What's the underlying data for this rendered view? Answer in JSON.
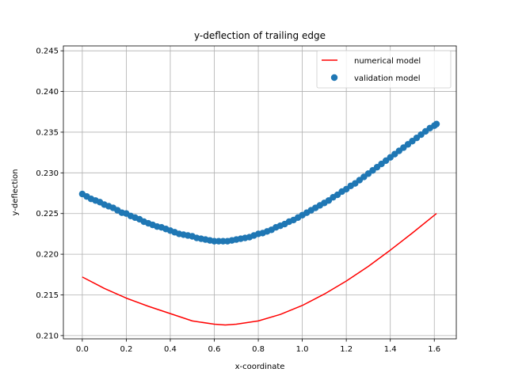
{
  "chart_data": {
    "type": "line",
    "title": "y-deflection of trailing edge",
    "xlabel": "x-coordinate",
    "ylabel": "y-deflection",
    "xlim": [
      -0.086,
      1.7
    ],
    "ylim": [
      0.2096,
      0.2456
    ],
    "xticks": [
      0.0,
      0.2,
      0.4,
      0.6,
      0.8,
      1.0,
      1.2,
      1.4,
      1.6
    ],
    "xtick_labels": [
      "0.0",
      "0.2",
      "0.4",
      "0.6",
      "0.8",
      "1.0",
      "1.2",
      "1.4",
      "1.6"
    ],
    "yticks": [
      0.21,
      0.215,
      0.22,
      0.225,
      0.23,
      0.235,
      0.24,
      0.245
    ],
    "ytick_labels": [
      "0.210",
      "0.215",
      "0.220",
      "0.225",
      "0.230",
      "0.235",
      "0.240",
      "0.245"
    ],
    "grid": true,
    "legend_position": "top-right",
    "series": [
      {
        "name": "numerical model",
        "kind": "line",
        "color": "#ff0000",
        "x": [
          0.0,
          0.1,
          0.2,
          0.3,
          0.4,
          0.5,
          0.6,
          0.65,
          0.7,
          0.8,
          0.9,
          1.0,
          1.1,
          1.2,
          1.3,
          1.4,
          1.5,
          1.61
        ],
        "y": [
          0.2172,
          0.2158,
          0.2146,
          0.2136,
          0.2127,
          0.2118,
          0.2114,
          0.2113,
          0.2114,
          0.2118,
          0.2126,
          0.2137,
          0.2151,
          0.2167,
          0.2185,
          0.2205,
          0.2226,
          0.225
        ]
      },
      {
        "name": "validation model",
        "kind": "scatter",
        "color": "#1f77b4",
        "x": [
          0.0,
          0.02,
          0.04,
          0.06,
          0.08,
          0.1,
          0.12,
          0.14,
          0.16,
          0.18,
          0.2,
          0.22,
          0.24,
          0.26,
          0.28,
          0.3,
          0.32,
          0.34,
          0.36,
          0.38,
          0.4,
          0.42,
          0.44,
          0.46,
          0.48,
          0.5,
          0.52,
          0.54,
          0.56,
          0.58,
          0.6,
          0.62,
          0.64,
          0.66,
          0.68,
          0.7,
          0.72,
          0.74,
          0.76,
          0.78,
          0.8,
          0.82,
          0.84,
          0.86,
          0.88,
          0.9,
          0.92,
          0.94,
          0.96,
          0.98,
          1.0,
          1.02,
          1.04,
          1.06,
          1.08,
          1.1,
          1.12,
          1.14,
          1.16,
          1.18,
          1.2,
          1.22,
          1.24,
          1.26,
          1.28,
          1.3,
          1.32,
          1.34,
          1.36,
          1.38,
          1.4,
          1.42,
          1.44,
          1.46,
          1.48,
          1.5,
          1.52,
          1.54,
          1.56,
          1.58,
          1.6,
          1.61
        ],
        "y": [
          0.2274,
          0.2271,
          0.2268,
          0.2266,
          0.2264,
          0.2261,
          0.2259,
          0.2257,
          0.2254,
          0.2251,
          0.225,
          0.2247,
          0.2245,
          0.2243,
          0.224,
          0.2238,
          0.2236,
          0.2234,
          0.2233,
          0.2231,
          0.2229,
          0.2227,
          0.2225,
          0.2224,
          0.2223,
          0.2222,
          0.222,
          0.2219,
          0.2218,
          0.2217,
          0.2216,
          0.2216,
          0.2216,
          0.2216,
          0.2217,
          0.2218,
          0.2219,
          0.222,
          0.2221,
          0.2223,
          0.2225,
          0.2226,
          0.2228,
          0.223,
          0.2233,
          0.2235,
          0.2237,
          0.224,
          0.2242,
          0.2245,
          0.2248,
          0.2251,
          0.2254,
          0.2257,
          0.226,
          0.2263,
          0.2266,
          0.227,
          0.2273,
          0.2277,
          0.228,
          0.2284,
          0.2287,
          0.2291,
          0.2295,
          0.2299,
          0.2303,
          0.2307,
          0.2311,
          0.2315,
          0.2319,
          0.2323,
          0.2327,
          0.2331,
          0.2335,
          0.2339,
          0.2343,
          0.2347,
          0.2351,
          0.2355,
          0.2358,
          0.236
        ]
      }
    ]
  }
}
